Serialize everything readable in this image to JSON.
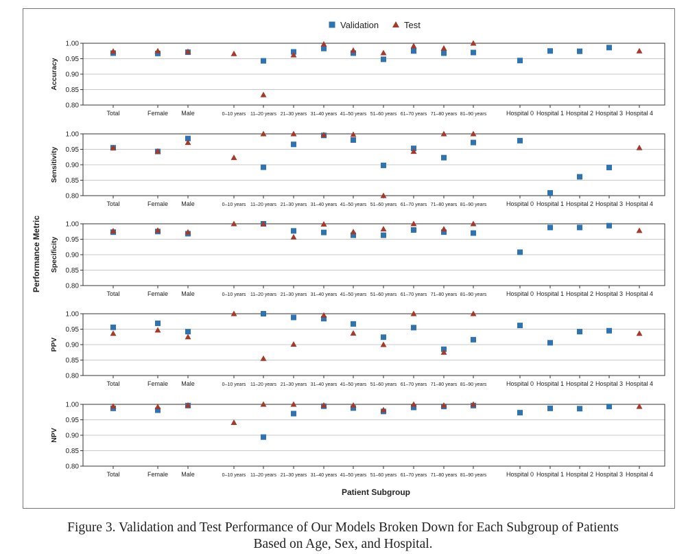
{
  "chart_data": {
    "type": "scatter",
    "legend": [
      {
        "name": "Validation",
        "marker": "square",
        "color": "#2f74b0"
      },
      {
        "name": "Test",
        "marker": "triangle",
        "color": "#a63a2a"
      }
    ],
    "legend_position": "top-center",
    "shared_ylabel": "Performance Metric",
    "xlabel": "Patient Subgroup",
    "categories": [
      "Total",
      "Female",
      "Male",
      "0–10 years",
      "11–20 years",
      "21–30 years",
      "31–40 years",
      "41–50 years",
      "51–60 years",
      "61–70 years",
      "71–80 years",
      "81–90 years",
      "Hospital 0",
      "Hospital 1",
      "Hospital 2",
      "Hospital 3",
      "Hospital 4"
    ],
    "ylim": [
      0.8,
      1.0
    ],
    "yticks": [
      "0.80",
      "0.85",
      "0.90",
      "0.95",
      "1.00"
    ],
    "grid": true,
    "panels": [
      {
        "ylabel": "Accuracy",
        "series": [
          {
            "name": "Validation",
            "values": [
              0.968,
              0.967,
              0.971,
              null,
              0.943,
              0.972,
              0.983,
              0.968,
              0.948,
              0.975,
              0.968,
              0.97,
              0.944,
              0.975,
              0.974,
              0.986,
              null
            ]
          },
          {
            "name": "Test",
            "values": [
              0.974,
              0.975,
              0.973,
              0.966,
              0.833,
              0.962,
              0.997,
              0.977,
              0.969,
              0.991,
              0.984,
              1.0,
              null,
              null,
              null,
              null,
              0.975
            ]
          }
        ]
      },
      {
        "ylabel": "Sensitivity",
        "series": [
          {
            "name": "Validation",
            "values": [
              0.955,
              0.943,
              0.985,
              null,
              0.892,
              0.966,
              0.995,
              0.98,
              0.898,
              0.953,
              0.923,
              0.972,
              0.978,
              0.809,
              0.861,
              0.891,
              null
            ]
          },
          {
            "name": "Test",
            "values": [
              0.955,
              0.944,
              0.972,
              0.923,
              1.0,
              1.0,
              0.997,
              0.998,
              0.8,
              0.943,
              1.0,
              1.0,
              null,
              null,
              null,
              null,
              0.955
            ]
          }
        ]
      },
      {
        "ylabel": "Specificity",
        "series": [
          {
            "name": "Validation",
            "values": [
              0.973,
              0.975,
              0.968,
              null,
              1.0,
              0.977,
              0.972,
              0.963,
              0.963,
              0.98,
              0.973,
              0.97,
              0.908,
              0.988,
              0.988,
              0.994,
              null
            ]
          },
          {
            "name": "Test",
            "values": [
              0.977,
              0.979,
              0.973,
              1.0,
              1.0,
              0.957,
              0.999,
              0.974,
              0.983,
              1.0,
              0.983,
              1.0,
              null,
              null,
              null,
              null,
              0.978
            ]
          }
        ]
      },
      {
        "ylabel": "PPV",
        "series": [
          {
            "name": "Validation",
            "values": [
              0.956,
              0.969,
              0.942,
              null,
              1.0,
              0.988,
              0.984,
              0.967,
              0.924,
              0.955,
              0.885,
              0.916,
              0.962,
              0.906,
              0.942,
              0.945,
              null
            ]
          },
          {
            "name": "Test",
            "values": [
              0.936,
              0.947,
              0.925,
              1.0,
              0.855,
              0.901,
              0.995,
              0.937,
              0.9,
              1.0,
              0.875,
              1.0,
              null,
              null,
              null,
              null,
              0.936
            ]
          }
        ]
      },
      {
        "ylabel": "NPV",
        "series": [
          {
            "name": "Validation",
            "values": [
              0.987,
              0.981,
              0.996,
              null,
              0.894,
              0.97,
              0.994,
              0.988,
              0.977,
              0.99,
              0.993,
              0.996,
              0.973,
              0.987,
              0.986,
              0.993,
              null
            ]
          },
          {
            "name": "Test",
            "values": [
              0.994,
              0.992,
              0.997,
              0.941,
              1.0,
              1.0,
              0.997,
              0.997,
              0.982,
              1.0,
              0.997,
              1.0,
              null,
              null,
              null,
              null,
              0.993
            ]
          }
        ]
      }
    ]
  },
  "caption": {
    "line1": "Figure 3.  Validation and Test Performance of Our Models Broken Down for Each Subgroup of Patients",
    "line2": "Based on Age, Sex, and Hospital."
  }
}
